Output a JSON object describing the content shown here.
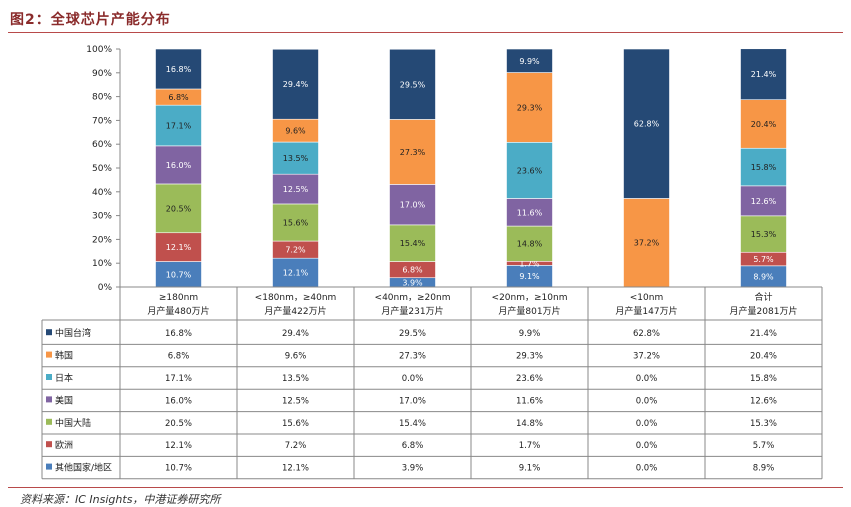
{
  "figure": {
    "title": "图2：全球芯片产能分布",
    "source": "资料来源：IC Insights，中港证券研究所"
  },
  "chart_data": {
    "type": "bar",
    "stacked": true,
    "percent": true,
    "ylim": [
      0,
      100
    ],
    "yticks": [
      "0%",
      "10%",
      "20%",
      "30%",
      "40%",
      "50%",
      "60%",
      "70%",
      "80%",
      "90%",
      "100%"
    ],
    "categories": [
      [
        "≥180nm",
        "月产量480万片"
      ],
      [
        "<180nm，≥40nm",
        "月产量422万片"
      ],
      [
        "<40nm，≥20nm",
        "月产量231万片"
      ],
      [
        "<20nm，≥10nm",
        "月产量801万片"
      ],
      [
        "<10nm",
        "月产量147万片"
      ],
      [
        "合计",
        "月产量2081万片"
      ]
    ],
    "series": [
      {
        "name": "其他国家/地区",
        "color": "#4a7ebb",
        "values": [
          10.7,
          12.1,
          3.9,
          9.1,
          0.0,
          8.9
        ]
      },
      {
        "name": "欧洲",
        "color": "#c0504d",
        "values": [
          12.1,
          7.2,
          6.8,
          1.7,
          0.0,
          5.7
        ]
      },
      {
        "name": "中国大陆",
        "color": "#9bbb59",
        "values": [
          20.5,
          15.6,
          15.4,
          14.8,
          0.0,
          15.3
        ]
      },
      {
        "name": "美国",
        "color": "#8064a2",
        "values": [
          16.0,
          12.5,
          17.0,
          11.6,
          0.0,
          12.6
        ]
      },
      {
        "name": "日本",
        "color": "#4bacc6",
        "values": [
          17.1,
          13.5,
          0.0,
          23.6,
          0.0,
          15.8
        ]
      },
      {
        "name": "韩国",
        "color": "#f79646",
        "values": [
          6.8,
          9.6,
          27.3,
          29.3,
          37.2,
          20.4
        ]
      },
      {
        "name": "中国台湾",
        "color": "#254975",
        "values": [
          16.8,
          29.4,
          29.5,
          9.9,
          62.8,
          21.4
        ]
      }
    ],
    "table_row_order": [
      "中国台湾",
      "韩国",
      "日本",
      "美国",
      "中国大陆",
      "欧洲",
      "其他国家/地区"
    ]
  }
}
